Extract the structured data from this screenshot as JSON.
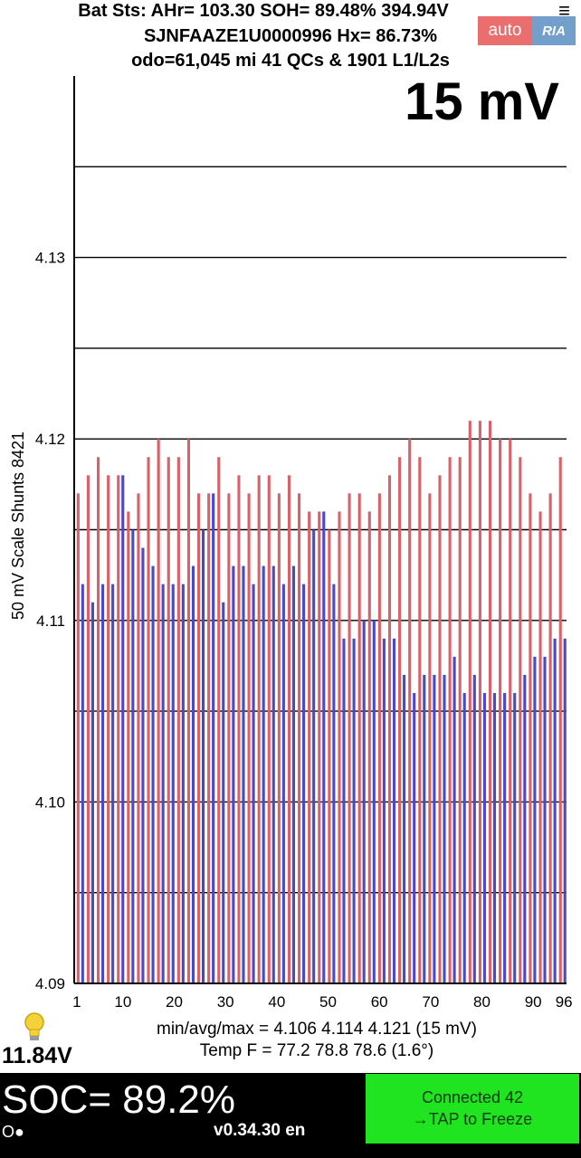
{
  "header": {
    "line1": "Bat Sts:  AHr= 103.30  SOH= 89.48%   394.94V",
    "line2": "SJNFAAZE1U0000996   Hx= 86.73%",
    "line3": "odo=61,045 mi  41 QCs & 1901 L1/L2s",
    "menu_glyph": "≡"
  },
  "watermark": {
    "part1": "auto",
    "part2": "RIA"
  },
  "scale_label": "15 mV",
  "chart_data": {
    "type": "bar",
    "title": "",
    "ylabel": "50 mV Scale   Shunts 8421",
    "xlabel": "",
    "ylim": [
      4.09,
      4.14
    ],
    "ytick_labels": [
      "4.09",
      "4.10",
      "4.11",
      "4.12",
      "4.13"
    ],
    "xtick_labels": [
      "1",
      "10",
      "20",
      "30",
      "40",
      "50",
      "60",
      "70",
      "80",
      "90",
      "96"
    ],
    "xtick_values": [
      1,
      10,
      20,
      30,
      40,
      50,
      60,
      70,
      80,
      90,
      96
    ],
    "grid": true,
    "colors": {
      "high": "#d9626a",
      "low": "#4a4ac8"
    },
    "pairs": [
      [
        4.117,
        4.112
      ],
      [
        4.118,
        4.111
      ],
      [
        4.119,
        4.112
      ],
      [
        4.118,
        4.112
      ],
      [
        4.118,
        4.118
      ],
      [
        4.116,
        4.115
      ],
      [
        4.117,
        4.114
      ],
      [
        4.119,
        4.113
      ],
      [
        4.12,
        4.112
      ],
      [
        4.119,
        4.112
      ],
      [
        4.119,
        4.112
      ],
      [
        4.12,
        4.113
      ],
      [
        4.117,
        4.115
      ],
      [
        4.117,
        4.117
      ],
      [
        4.119,
        4.111
      ],
      [
        4.117,
        4.113
      ],
      [
        4.118,
        4.113
      ],
      [
        4.117,
        4.112
      ],
      [
        4.118,
        4.113
      ],
      [
        4.118,
        4.113
      ],
      [
        4.117,
        4.112
      ],
      [
        4.118,
        4.113
      ],
      [
        4.117,
        4.112
      ],
      [
        4.116,
        4.115
      ],
      [
        4.116,
        4.116
      ],
      [
        4.115,
        4.112
      ],
      [
        4.116,
        4.109
      ],
      [
        4.117,
        4.109
      ],
      [
        4.117,
        4.11
      ],
      [
        4.116,
        4.11
      ],
      [
        4.117,
        4.109
      ],
      [
        4.118,
        4.109
      ],
      [
        4.119,
        4.107
      ],
      [
        4.12,
        4.106
      ],
      [
        4.119,
        4.107
      ],
      [
        4.117,
        4.107
      ],
      [
        4.118,
        4.107
      ],
      [
        4.119,
        4.108
      ],
      [
        4.119,
        4.106
      ],
      [
        4.121,
        4.107
      ],
      [
        4.121,
        4.106
      ],
      [
        4.121,
        4.106
      ],
      [
        4.12,
        4.106
      ],
      [
        4.12,
        4.106
      ],
      [
        4.119,
        4.107
      ],
      [
        4.117,
        4.108
      ],
      [
        4.116,
        4.108
      ],
      [
        4.117,
        4.109
      ],
      [
        4.119,
        4.109
      ]
    ]
  },
  "stats": {
    "minavgmax": "min/avg/max = 4.106 4.114 4.121  (15 mV)",
    "temp": "Temp F = 77.2  78.8  78.6  (1.6°)"
  },
  "aux_voltage": "11.84V",
  "soc": "SOC= 89.2%",
  "status_dots": "O●",
  "version": "v0.34.30 en",
  "button": {
    "line1": "Connected 42",
    "line2": "→TAP to Freeze"
  }
}
